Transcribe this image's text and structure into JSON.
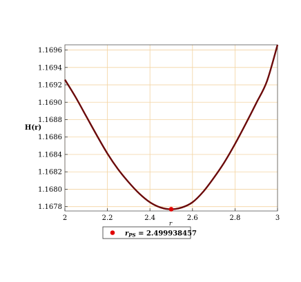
{
  "chart_data": {
    "type": "line",
    "title": "",
    "xlabel": "r",
    "ylabel": "H(r)",
    "xlim": [
      2.0,
      3.0
    ],
    "ylim": [
      1.16775,
      1.16966
    ],
    "grid": true,
    "x_ticks": [
      2,
      2.2,
      2.4,
      2.6,
      2.8,
      3
    ],
    "y_ticks": [
      1.1678,
      1.168,
      1.1682,
      1.1684,
      1.1686,
      1.1688,
      1.169,
      1.1692,
      1.1694,
      1.1696
    ],
    "x_tick_labels": [
      "2",
      "2.2",
      "2.4",
      "2.6",
      "2.8",
      "3"
    ],
    "y_tick_labels": [
      "1.1678",
      "1.1680",
      "1.1682",
      "1.1684",
      "1.1686",
      "1.1688",
      "1.1690",
      "1.1692",
      "1.1694",
      "1.1696"
    ],
    "series": [
      {
        "color": "#6b0a0a",
        "x": [
          2.0,
          2.05,
          2.1,
          2.15,
          2.2,
          2.25,
          2.3,
          2.35,
          2.4,
          2.45,
          2.5,
          2.55,
          2.6,
          2.65,
          2.7,
          2.75,
          2.8,
          2.85,
          2.9,
          2.95,
          3.0
        ],
        "y": [
          1.16926,
          1.16906,
          1.16884,
          1.16862,
          1.16841,
          1.16823,
          1.16808,
          1.16795,
          1.16785,
          1.16779,
          1.16777,
          1.16779,
          1.16785,
          1.16797,
          1.16813,
          1.16831,
          1.16852,
          1.16875,
          1.16899,
          1.16924,
          1.16966
        ]
      }
    ],
    "points": [
      {
        "x": 2.499938457,
        "y": 1.16777,
        "color": "#e00000"
      }
    ],
    "legend": {
      "placement": "bottom-left",
      "label_main": "r",
      "label_sub": "PS",
      "label_value": " = 2.499938457"
    }
  }
}
